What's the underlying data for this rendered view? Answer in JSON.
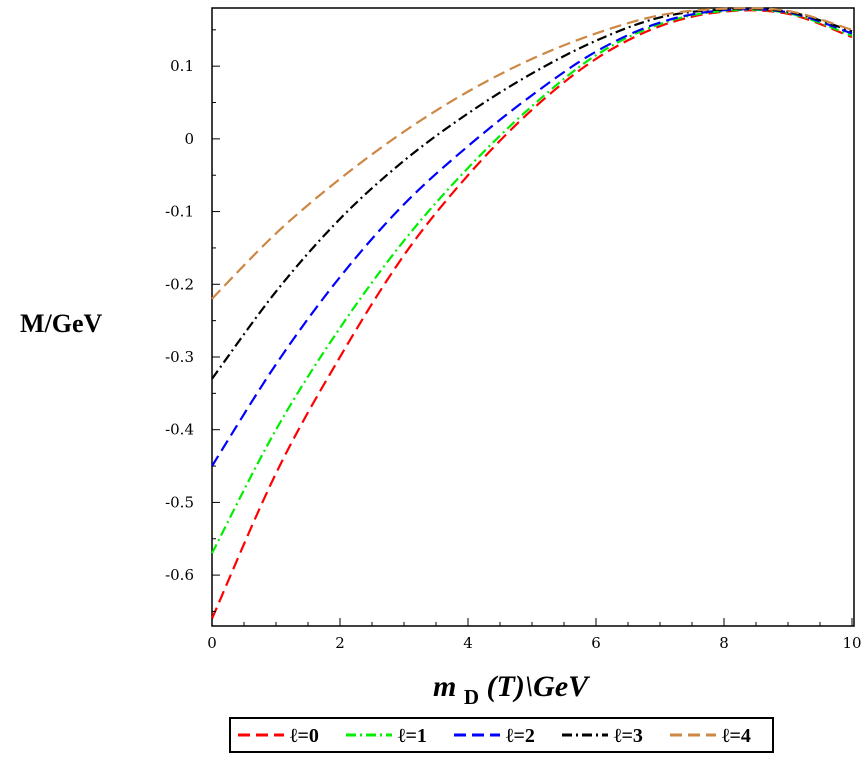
{
  "chart_data": {
    "type": "line",
    "xlabel": {
      "main": "m",
      "sub": "D",
      "rest": "(T)\\GeV"
    },
    "ylabel": "M/GeV",
    "xlim": [
      0,
      10
    ],
    "ylim": [
      -0.67,
      0.18
    ],
    "x_ticks": [
      "0",
      "2",
      "4",
      "6",
      "8",
      "10"
    ],
    "y_ticks": [
      "0.1",
      "0",
      "-0.1",
      "-0.2",
      "-0.3",
      "-0.4",
      "-0.5",
      "-0.6"
    ],
    "grid": false,
    "legend_position": "bottom",
    "series": [
      {
        "name": "ℓ=0",
        "color": "#ff0000",
        "dash": "long-dash",
        "x": [
          0,
          1,
          2,
          3,
          4,
          5,
          6,
          7,
          8,
          9,
          10
        ],
        "y": [
          -0.66,
          -0.46,
          -0.3,
          -0.16,
          -0.05,
          0.04,
          0.11,
          0.155,
          0.175,
          0.172,
          0.14
        ]
      },
      {
        "name": "ℓ=1",
        "color": "#00ee00",
        "dash": "dash-dot",
        "x": [
          0,
          1,
          2,
          3,
          4,
          5,
          6,
          7,
          8,
          9,
          10
        ],
        "y": [
          -0.57,
          -0.4,
          -0.26,
          -0.14,
          -0.04,
          0.045,
          0.115,
          0.158,
          0.176,
          0.173,
          0.142
        ]
      },
      {
        "name": "ℓ=2",
        "color": "#0000ff",
        "dash": "long-dash",
        "x": [
          0,
          1,
          2,
          3,
          4,
          5,
          6,
          7,
          8,
          9,
          10
        ],
        "y": [
          -0.45,
          -0.31,
          -0.19,
          -0.09,
          -0.01,
          0.06,
          0.12,
          0.16,
          0.177,
          0.174,
          0.145
        ]
      },
      {
        "name": "ℓ=3",
        "color": "#000000",
        "dash": "dash-dot",
        "x": [
          0,
          1,
          2,
          3,
          4,
          5,
          6,
          7,
          8,
          9,
          10
        ],
        "y": [
          -0.33,
          -0.21,
          -0.11,
          -0.03,
          0.035,
          0.09,
          0.135,
          0.167,
          0.178,
          0.175,
          0.148
        ]
      },
      {
        "name": "ℓ=4",
        "color": "#cc8844",
        "dash": "long-dash",
        "x": [
          0,
          1,
          2,
          3,
          4,
          5,
          6,
          7,
          8,
          9,
          10
        ],
        "y": [
          -0.22,
          -0.13,
          -0.055,
          0.01,
          0.065,
          0.11,
          0.145,
          0.17,
          0.179,
          0.176,
          0.15
        ]
      }
    ]
  }
}
